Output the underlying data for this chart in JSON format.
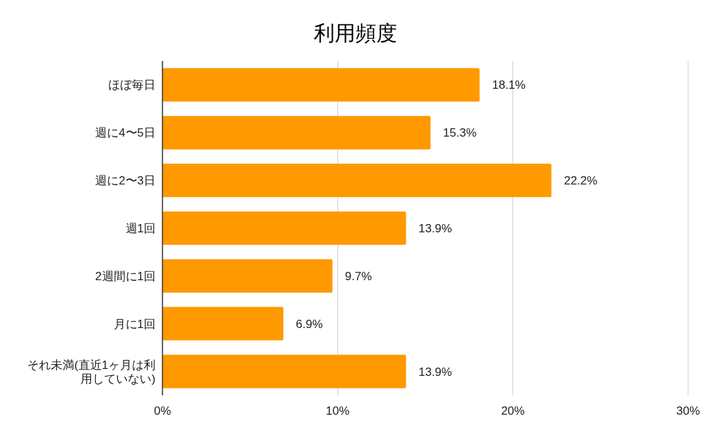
{
  "chart_data": {
    "type": "bar",
    "orientation": "horizontal",
    "title": "利用頻度",
    "categories": [
      "ほぼ毎日",
      "週に4〜5日",
      "週に2〜3日",
      "週1回",
      "2週間に1回",
      "月に1回",
      "それ未満(直近1ヶ月は利用していない)"
    ],
    "values": [
      18.1,
      15.3,
      22.2,
      13.9,
      9.7,
      6.9,
      13.9
    ],
    "value_labels": [
      "18.1%",
      "15.3%",
      "22.2%",
      "13.9%",
      "9.7%",
      "6.9%",
      "13.9%"
    ],
    "color": "#ff9900",
    "xlim": [
      0,
      30
    ],
    "xticks": [
      {
        "value": 0,
        "label": "0%"
      },
      {
        "value": 10,
        "label": "10%"
      },
      {
        "value": 20,
        "label": "20%"
      },
      {
        "value": 30,
        "label": "30%"
      }
    ],
    "grid": "x"
  }
}
